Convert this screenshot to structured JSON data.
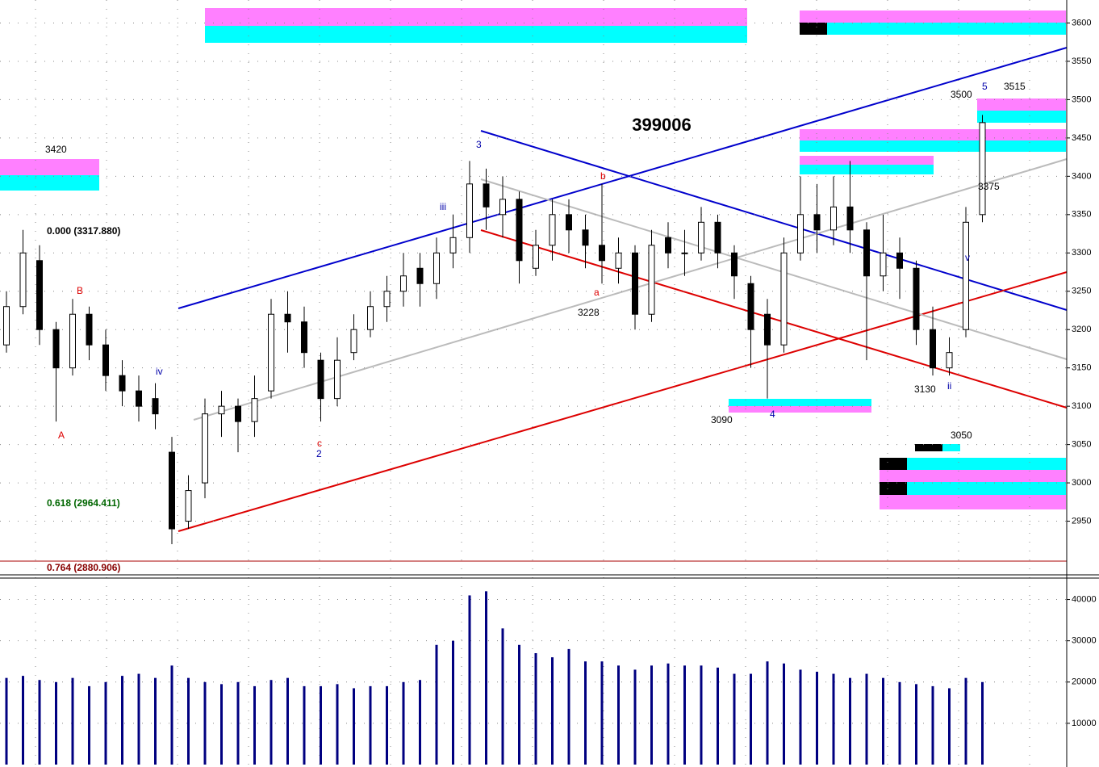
{
  "chart_data": [
    {
      "type": "candlestick",
      "title": "399006",
      "open": [
        3180,
        3230,
        3290,
        3200,
        3150,
        3220,
        3180,
        3140,
        3120,
        3110,
        3040,
        2950,
        3000,
        3090,
        3100,
        3080,
        3120,
        3220,
        3210,
        3160,
        3110,
        3170,
        3200,
        3230,
        3250,
        3280,
        3260,
        3300,
        3320,
        3390,
        3350,
        3370,
        3280,
        3310,
        3350,
        3330,
        3310,
        3280,
        3300,
        3220,
        3320,
        3300,
        3300,
        3340,
        3300,
        3260,
        3220,
        3180,
        3300,
        3350,
        3330,
        3360,
        3330,
        3270,
        3300,
        3280,
        3200,
        3150,
        3200,
        3350
      ],
      "high": [
        3250,
        3330,
        3310,
        3210,
        3240,
        3230,
        3200,
        3160,
        3140,
        3130,
        3060,
        3010,
        3110,
        3120,
        3110,
        3140,
        3240,
        3250,
        3230,
        3170,
        3190,
        3220,
        3250,
        3270,
        3300,
        3300,
        3320,
        3350,
        3420,
        3410,
        3400,
        3380,
        3330,
        3370,
        3370,
        3350,
        3390,
        3320,
        3310,
        3330,
        3340,
        3330,
        3360,
        3350,
        3310,
        3270,
        3240,
        3320,
        3400,
        3390,
        3400,
        3420,
        3340,
        3350,
        3320,
        3290,
        3230,
        3190,
        3360,
        3480
      ],
      "low": [
        3170,
        3220,
        3180,
        3080,
        3140,
        3160,
        3120,
        3100,
        3080,
        3070,
        2920,
        2940,
        2980,
        3060,
        3040,
        3060,
        3110,
        3170,
        3150,
        3080,
        3100,
        3160,
        3190,
        3210,
        3230,
        3230,
        3240,
        3280,
        3300,
        3330,
        3320,
        3260,
        3270,
        3290,
        3300,
        3280,
        3260,
        3260,
        3200,
        3210,
        3280,
        3270,
        3290,
        3280,
        3240,
        3150,
        3110,
        3170,
        3290,
        3300,
        3310,
        3300,
        3160,
        3250,
        3240,
        3180,
        3140,
        3140,
        3190,
        3340
      ],
      "close": [
        3230,
        3300,
        3200,
        3150,
        3220,
        3180,
        3140,
        3120,
        3100,
        3090,
        2940,
        2990,
        3090,
        3100,
        3080,
        3110,
        3220,
        3210,
        3170,
        3110,
        3160,
        3200,
        3230,
        3250,
        3270,
        3260,
        3300,
        3320,
        3390,
        3360,
        3370,
        3290,
        3310,
        3350,
        3330,
        3310,
        3290,
        3300,
        3220,
        3310,
        3300,
        3300,
        3340,
        3300,
        3270,
        3200,
        3180,
        3300,
        3350,
        3330,
        3360,
        3330,
        3270,
        3300,
        3280,
        3200,
        3150,
        3170,
        3340,
        3470
      ],
      "up_color": "#ffffff",
      "down_color": "#000000",
      "ylim": [
        2880,
        3630
      ],
      "yticks": [
        2950,
        3000,
        3050,
        3100,
        3150,
        3200,
        3250,
        3300,
        3350,
        3400,
        3450,
        3500,
        3550,
        3600
      ],
      "grid": true,
      "annotations": [
        "3420",
        "3500",
        "3515",
        "3375",
        "3228",
        "3090",
        "3130",
        "3050",
        "0.000 (3317.880)",
        "0.618 (2964.411)",
        "0.764 (2880.906)",
        "A",
        "B",
        "b",
        "a",
        "c",
        "2",
        "4",
        "iii",
        "iv",
        "ii",
        "v",
        "3",
        "5"
      ]
    },
    {
      "type": "bar",
      "color": "#000080",
      "values": [
        21000,
        21500,
        20500,
        20000,
        21000,
        19000,
        20000,
        21500,
        22000,
        21000,
        24000,
        21000,
        20000,
        19500,
        20000,
        19000,
        20500,
        21000,
        19000,
        19000,
        19500,
        18500,
        19000,
        19000,
        20000,
        20500,
        29000,
        30000,
        41000,
        42000,
        33000,
        29000,
        27000,
        26000,
        28000,
        25000,
        25000,
        24000,
        23000,
        24000,
        24500,
        24000,
        24000,
        23500,
        22000,
        22000,
        25000,
        24500,
        23000,
        22500,
        22000,
        21000,
        22000,
        21000,
        20000,
        19500,
        19000,
        18500,
        21000,
        20000
      ],
      "ylim": [
        0,
        45000
      ],
      "yticks": [
        10000,
        20000,
        30000,
        40000
      ],
      "grid": true
    }
  ]
}
